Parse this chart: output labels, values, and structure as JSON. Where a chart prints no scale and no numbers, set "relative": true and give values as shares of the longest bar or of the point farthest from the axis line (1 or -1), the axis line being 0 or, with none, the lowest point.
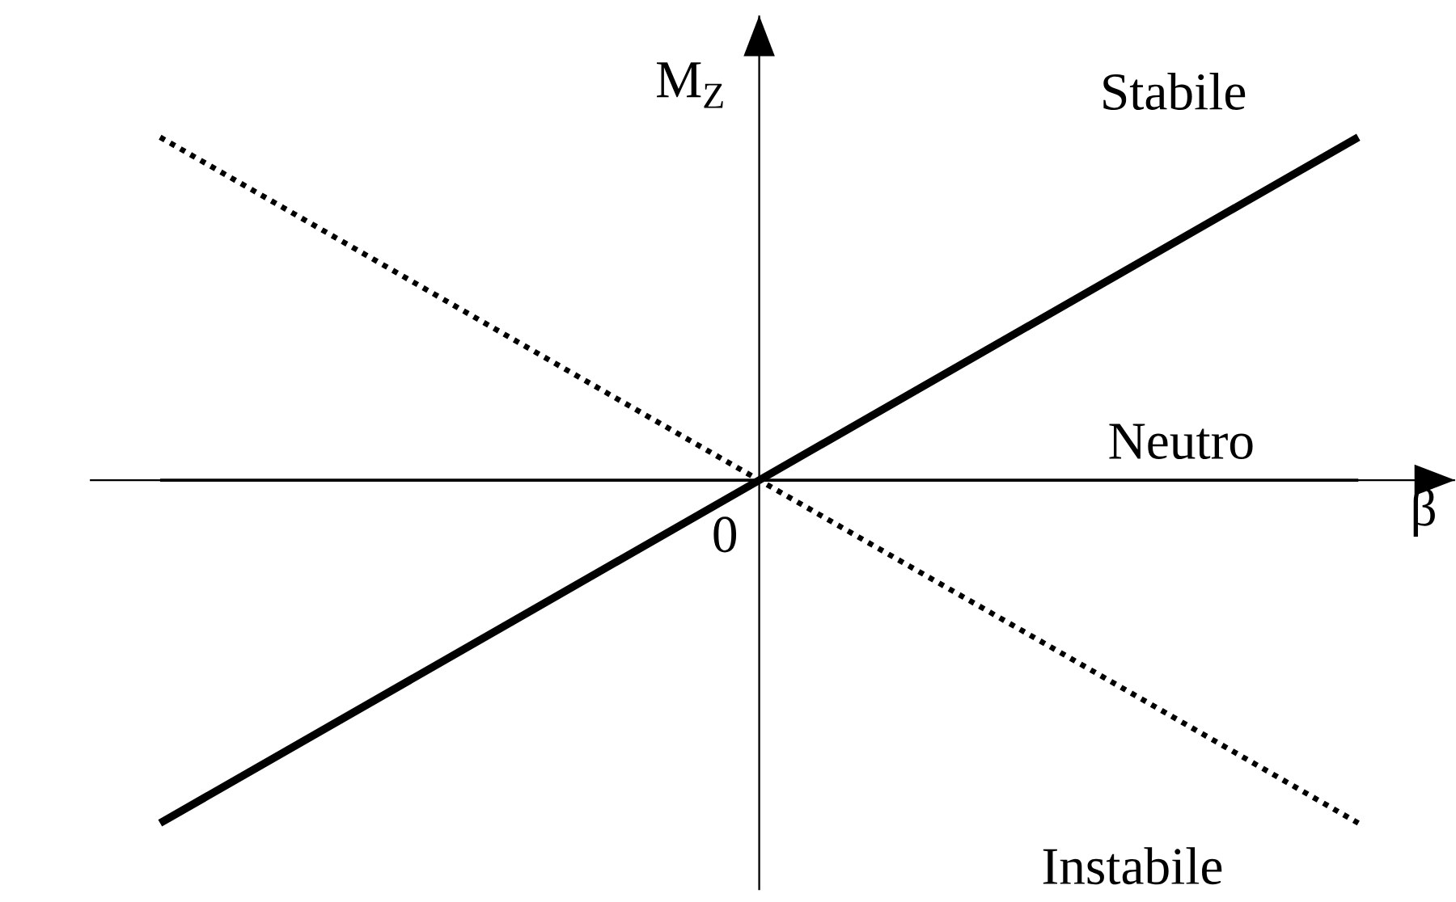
{
  "chart_data": {
    "type": "line",
    "relative": true,
    "xlabel": "β",
    "ylabel": "M$_{Z}$",
    "categories": [
      null,
      null,
      null
    ],
    "series": [
      {
        "name": "Stabile",
        "color": "#000000",
        "line_style": "solid",
        "values": [
          -1,
          0,
          1
        ]
      },
      {
        "name": "Neutro",
        "color": "#000000",
        "line_style": "solid",
        "values": [
          0,
          0,
          0
        ]
      },
      {
        "name": "Instabile",
        "color": "#000000",
        "line_style": "dotted",
        "values": [
          1,
          0,
          -1
        ]
      }
    ],
    "annotations": [
      "0"
    ],
    "marker": "none"
  }
}
